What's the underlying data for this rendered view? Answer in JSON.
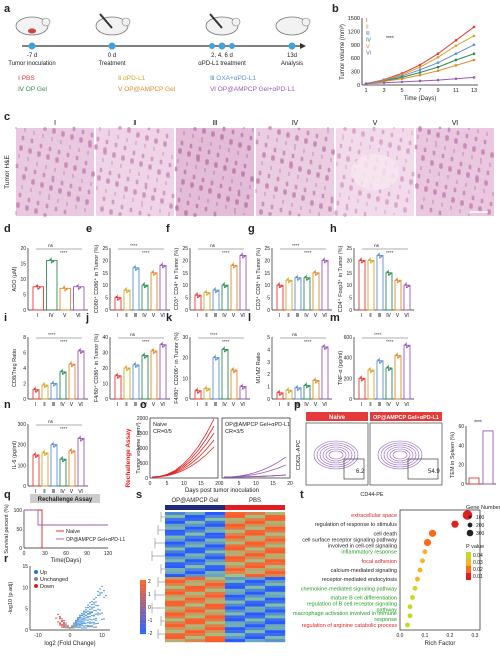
{
  "panel_letters": [
    "a",
    "b",
    "c",
    "d",
    "e",
    "f",
    "g",
    "h",
    "i",
    "j",
    "k",
    "l",
    "m",
    "n",
    "o",
    "p",
    "q",
    "r",
    "s",
    "t"
  ],
  "timeline": {
    "days": [
      "-7 d",
      "0 d",
      "2, 4, 6 d",
      "13d"
    ],
    "events": [
      "Tumor inoculation",
      "Treatment",
      "αPD-L1 treatment",
      "Analysis"
    ]
  },
  "groups": [
    {
      "id": "Ⅰ",
      "name": "PBS",
      "color": "#e63a3a"
    },
    {
      "id": "Ⅱ",
      "name": "αPD-L1",
      "color": "#d4a72c"
    },
    {
      "id": "Ⅲ",
      "name": "OXA+αPD-L1",
      "color": "#5c8fd6"
    },
    {
      "id": "Ⅳ",
      "name": "OP Gel",
      "color": "#2e8b57"
    },
    {
      "id": "Ⅴ",
      "name": "OP@AMPCP Gel",
      "color": "#e08a2e"
    },
    {
      "id": "Ⅵ",
      "name": "OP@AMPCP Gel+αPD-L1",
      "color": "#9b59b6"
    }
  ],
  "roman": [
    "Ⅰ",
    "Ⅱ",
    "Ⅲ",
    "Ⅳ",
    "Ⅴ",
    "Ⅵ"
  ],
  "tumor_growth": {
    "ylabel": "Tumor volume (mm³)",
    "xlabel": "Time (Days)",
    "x": [
      1,
      3,
      5,
      7,
      9,
      11,
      13
    ],
    "series": [
      {
        "name": "Ⅰ",
        "values": [
          30,
          120,
          260,
          450,
          700,
          1000,
          1300
        ]
      },
      {
        "name": "Ⅱ",
        "values": [
          30,
          110,
          230,
          400,
          620,
          880,
          1100
        ]
      },
      {
        "name": "Ⅲ",
        "values": [
          30,
          100,
          200,
          340,
          500,
          700,
          900
        ]
      },
      {
        "name": "Ⅳ",
        "values": [
          30,
          90,
          170,
          280,
          400,
          560,
          700
        ]
      },
      {
        "name": "Ⅴ",
        "values": [
          30,
          80,
          140,
          220,
          320,
          440,
          560
        ]
      },
      {
        "name": "Ⅵ",
        "values": [
          30,
          50,
          70,
          90,
          110,
          140,
          170
        ]
      }
    ],
    "ylim": [
      0,
      1500
    ],
    "yticks": [
      "0",
      "300",
      "600",
      "900",
      "1200",
      "1500"
    ],
    "xticks": [
      "1",
      "3",
      "5",
      "7",
      "9",
      "11",
      "13"
    ]
  },
  "he_label": "Tumor H&E",
  "bar_panels": [
    {
      "label": "ADO (μM)",
      "ymax": 20,
      "ticks": [
        "0",
        "5",
        "10",
        "15",
        "20"
      ],
      "values": [
        7.5,
        16,
        7,
        7.5
      ],
      "cats": [
        "Ⅰ",
        "Ⅳ",
        "Ⅴ",
        "Ⅵ"
      ],
      "colors": [
        "#e63a3a",
        "#2e8b57",
        "#e08a2e",
        "#9b59b6"
      ]
    },
    {
      "label": "CD80⁺ CD86⁺ in Tumor (%)",
      "ymax": 25,
      "ticks": [
        "0",
        "5",
        "10",
        "15",
        "20",
        "25"
      ],
      "values": [
        5,
        8,
        17,
        10,
        15,
        18
      ]
    },
    {
      "label": "CD3⁺ CD4⁺ in Tumor (%)",
      "ymax": 25,
      "ticks": [
        "0",
        "5",
        "10",
        "15",
        "20",
        "25"
      ],
      "values": [
        6,
        7,
        8,
        10,
        18,
        22
      ]
    },
    {
      "label": "CD3⁺ CD8⁺ in Tumor (%)",
      "ymax": 25,
      "ticks": [
        "0",
        "5",
        "10",
        "15",
        "20",
        "25"
      ],
      "values": [
        10,
        12,
        13,
        13,
        15,
        20
      ]
    },
    {
      "label": "CD4⁺ Foxp3⁺ in Tumor (%)",
      "ymax": 25,
      "ticks": [
        "0",
        "5",
        "10",
        "15",
        "20",
        "25"
      ],
      "values": [
        20,
        20,
        22,
        15,
        12,
        10
      ]
    },
    {
      "label": "CD8/Treg Ratio",
      "ymax": 8,
      "ticks": [
        "0",
        "2",
        "4",
        "6",
        "8"
      ],
      "values": [
        1.2,
        1.8,
        2.0,
        3.5,
        4.5,
        6.2
      ]
    },
    {
      "label": "F4/80⁺ CD86⁺ in Tumor (%)",
      "ymax": 40,
      "ticks": [
        "0",
        "10",
        "20",
        "30",
        "40"
      ],
      "values": [
        15,
        20,
        22,
        28,
        31,
        35
      ]
    },
    {
      "label": "F4/80⁺ CD206⁺ in Tumor (%)",
      "ymax": 30,
      "ticks": [
        "0",
        "10",
        "20",
        "30"
      ],
      "values": [
        4,
        5,
        20,
        24,
        14,
        6
      ]
    },
    {
      "label": "M1/M2 Ratio",
      "ymax": 5,
      "ticks": [
        "0",
        "1",
        "2",
        "3",
        "4",
        "5"
      ],
      "values": [
        0.5,
        0.7,
        0.9,
        1.1,
        1.5,
        4.2
      ]
    },
    {
      "label": "TNF-α (pg/ml)",
      "ymax": 600,
      "ticks": [
        "0",
        "200",
        "400",
        "600"
      ],
      "values": [
        200,
        280,
        370,
        300,
        420,
        520
      ]
    },
    {
      "label": "IL-6 (pg/ml)",
      "ymax": 300,
      "ticks": [
        "0",
        "100",
        "200",
        "300"
      ],
      "values": [
        150,
        160,
        200,
        130,
        170,
        230
      ]
    }
  ],
  "sig": [
    "ns",
    "****",
    "***",
    "**",
    "*"
  ],
  "rechallenge_tag": "Rechallenge Assay",
  "o_panel": {
    "ylabel": "Tumor volume (mm³)",
    "xlabel": "Days post tumor inoculation",
    "left": {
      "title": "Naive",
      "cr": "CR=0/5"
    },
    "right": {
      "title": "OP@AMPCP Gel+αPD-L1",
      "cr": "CR=3/5"
    },
    "yticks": [
      "0",
      "500",
      "1000",
      "1500",
      "2000"
    ],
    "xticks": [
      "0",
      "5",
      "10",
      "15",
      "20"
    ]
  },
  "p_panel": {
    "headers": [
      "Naive",
      "OP@AMPCP Gel+αPD-L1"
    ],
    "values": [
      "6.2",
      "54.9"
    ],
    "xlabel": "CD44-PE",
    "ylabel": "CD62L-APC",
    "bar_label": "TEM in Spleen (%)",
    "bar_values": [
      6.2,
      54.9
    ],
    "yticks": [
      "0",
      "20",
      "40",
      "60"
    ]
  },
  "q_panel": {
    "ylabel": "Survival percent (%)",
    "xlabel": "Time(Days)",
    "legend": [
      "Naive",
      "OP@AMPCP Gel+αPD-L1"
    ],
    "yticks": [
      "0",
      "50",
      "100"
    ],
    "xticks": [
      "0",
      "30",
      "60",
      "90",
      "120"
    ]
  },
  "r_panel": {
    "legend": [
      "Up",
      "Unchanged",
      "Down"
    ],
    "xlabel": "log2 (Fold Change)",
    "ylabel": "-log10 (p.adj)",
    "xticks": [
      "-10",
      "0",
      "10"
    ],
    "yticks": [
      "0",
      "5",
      "10",
      "15"
    ]
  },
  "s_panel": {
    "groups": [
      "OP@AMPCP Gel",
      "PBS"
    ],
    "scale": [
      "2",
      "1",
      "0",
      "-1",
      "-2"
    ]
  },
  "t_panel": {
    "terms": [
      {
        "name": "extracellular space",
        "color": "#e02020",
        "rf": 0.27,
        "size": 3
      },
      {
        "name": "regulation of response to stimulus",
        "color": "#222",
        "rf": 0.22,
        "size": 2
      },
      {
        "name": "cell death",
        "color": "#222",
        "rf": 0.13,
        "size": 2
      },
      {
        "name": "cell surface receptor signaling pathway involved in cell-cell signaling",
        "color": "#222",
        "rf": 0.11,
        "size": 2
      },
      {
        "name": "inflammatory response",
        "color": "#20a020",
        "rf": 0.1,
        "size": 1
      },
      {
        "name": "focal adhesion",
        "color": "#e02020",
        "rf": 0.09,
        "size": 1
      },
      {
        "name": "calcium-mediated signaling",
        "color": "#222",
        "rf": 0.08,
        "size": 1
      },
      {
        "name": "receptor-mediated endocytosis",
        "color": "#222",
        "rf": 0.07,
        "size": 1
      },
      {
        "name": "chemokine-mediated signaling pathway",
        "color": "#20a020",
        "rf": 0.06,
        "size": 1
      },
      {
        "name": "mature B cell differentiation",
        "color": "#20a020",
        "rf": 0.05,
        "size": 1
      },
      {
        "name": "regulation of B cell receptor signaling pathway",
        "color": "#20a020",
        "rf": 0.04,
        "size": 1
      },
      {
        "name": "macrophage activation involved in immune response",
        "color": "#20a020",
        "rf": 0.04,
        "size": 1
      },
      {
        "name": "regulation of arginine catabolic process",
        "color": "#e02020",
        "rf": 0.03,
        "size": 1
      }
    ],
    "xlabel": "Rich Factor",
    "xticks": [
      "0.0",
      "0.1",
      "0.2",
      "0.3"
    ],
    "size_title": "Gene Number",
    "sizes": [
      "100",
      "200",
      "300"
    ],
    "p_title": "P value",
    "pvals": [
      "0.04",
      "0.03",
      "0.02",
      "0.01"
    ]
  }
}
